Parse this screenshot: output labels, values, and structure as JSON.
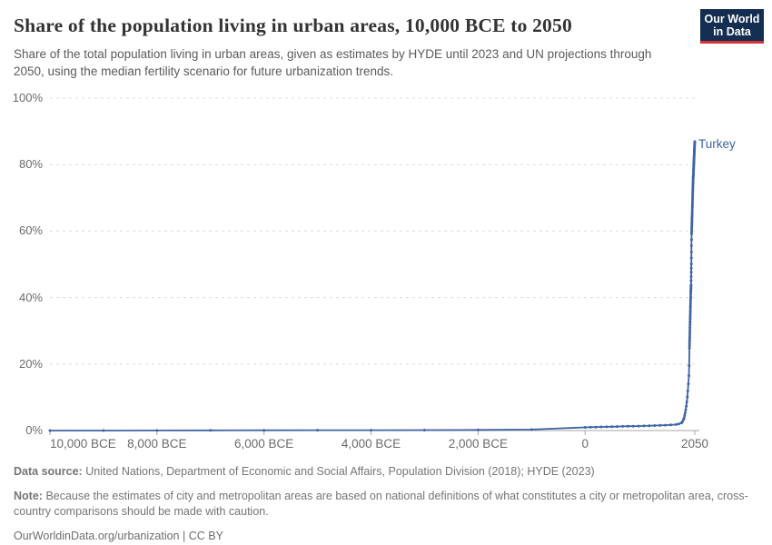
{
  "header": {
    "title": "Share of the population living in urban areas, 10,000 BCE to 2050",
    "subtitle": "Share of the total population living in urban areas, given as estimates by HYDE until 2023 and UN projections through 2050, using the median fertility scenario for future urbanization trends.",
    "logo": {
      "line1": "Our World",
      "line2": "in Data",
      "bg_color": "#142e52",
      "stripe_color": "#d1353a"
    }
  },
  "footer": {
    "datasource_label": "Data source:",
    "datasource_text": "United Nations, Department of Economic and Social Affairs, Population Division (2018); HYDE (2023)",
    "note_label": "Note:",
    "note_text": "Because the estimates of city and metropolitan areas are based on national definitions of what constitutes a city or metropolitan area, cross-country comparisons should be made with caution.",
    "citation_link": "OurWorldinData.org/urbanization",
    "citation_license": " | CC BY"
  },
  "chart_data": {
    "type": "line",
    "title": "Share of the population living in urban areas, 10,000 BCE to 2050",
    "xlabel": "",
    "ylabel": "",
    "xlim": [
      -10000,
      2050
    ],
    "ylim": [
      0,
      100
    ],
    "grid": "dashed-horizontal",
    "legend_position": "end-of-line-label",
    "x_ticks": [
      {
        "label": "10,000 BCE",
        "year": -10000,
        "align": "left"
      },
      {
        "label": "8,000 BCE",
        "year": -8000
      },
      {
        "label": "6,000 BCE",
        "year": -6000
      },
      {
        "label": "4,000 BCE",
        "year": -4000
      },
      {
        "label": "2,000 BCE",
        "year": -2000
      },
      {
        "label": "0",
        "year": 0
      },
      {
        "label": "2050",
        "year": 2050
      }
    ],
    "y_ticks": [
      {
        "label": "0%",
        "value": 0
      },
      {
        "label": "20%",
        "value": 20
      },
      {
        "label": "40%",
        "value": 40
      },
      {
        "label": "60%",
        "value": 60
      },
      {
        "label": "80%",
        "value": 80
      },
      {
        "label": "100%",
        "value": 100
      }
    ],
    "series": [
      {
        "name": "Turkey",
        "color": "#3d64a4",
        "points": [
          [
            -10000,
            0
          ],
          [
            -9000,
            0
          ],
          [
            -8000,
            0.02
          ],
          [
            -7000,
            0.05
          ],
          [
            -6000,
            0.08
          ],
          [
            -5000,
            0.1
          ],
          [
            -4000,
            0.12
          ],
          [
            -3000,
            0.15
          ],
          [
            -2000,
            0.2
          ],
          [
            -1000,
            0.3
          ],
          [
            0,
            0.95
          ],
          [
            100,
            1.0
          ],
          [
            200,
            1.05
          ],
          [
            300,
            1.1
          ],
          [
            400,
            1.12
          ],
          [
            500,
            1.15
          ],
          [
            600,
            1.2
          ],
          [
            700,
            1.25
          ],
          [
            800,
            1.3
          ],
          [
            900,
            1.32
          ],
          [
            1000,
            1.35
          ],
          [
            1100,
            1.4
          ],
          [
            1200,
            1.45
          ],
          [
            1300,
            1.5
          ],
          [
            1400,
            1.55
          ],
          [
            1500,
            1.6
          ],
          [
            1600,
            1.7
          ],
          [
            1700,
            1.8
          ],
          [
            1750,
            2.0
          ],
          [
            1800,
            2.3
          ],
          [
            1820,
            2.7
          ],
          [
            1840,
            3.3
          ],
          [
            1850,
            3.8
          ],
          [
            1860,
            4.5
          ],
          [
            1870,
            5.3
          ],
          [
            1880,
            6.2
          ],
          [
            1890,
            7.3
          ],
          [
            1900,
            8.6
          ],
          [
            1910,
            10.1
          ],
          [
            1920,
            11.9
          ],
          [
            1930,
            14.0
          ],
          [
            1940,
            16.5
          ],
          [
            1945,
            19.5
          ],
          [
            1950,
            24.8
          ],
          [
            1951,
            25.5
          ],
          [
            1952,
            26.1
          ],
          [
            1953,
            26.8
          ],
          [
            1954,
            27.4
          ],
          [
            1955,
            28.1
          ],
          [
            1956,
            28.8
          ],
          [
            1957,
            29.5
          ],
          [
            1958,
            30.2
          ],
          [
            1959,
            30.9
          ],
          [
            1960,
            31.6
          ],
          [
            1961,
            32.3
          ],
          [
            1962,
            32.9
          ],
          [
            1963,
            33.6
          ],
          [
            1964,
            34.2
          ],
          [
            1965,
            34.9
          ],
          [
            1966,
            35.6
          ],
          [
            1967,
            36.2
          ],
          [
            1968,
            36.9
          ],
          [
            1969,
            37.5
          ],
          [
            1970,
            38.2
          ],
          [
            1971,
            38.9
          ],
          [
            1972,
            39.6
          ],
          [
            1973,
            40.2
          ],
          [
            1974,
            40.9
          ],
          [
            1975,
            41.6
          ],
          [
            1976,
            42.0
          ],
          [
            1977,
            42.5
          ],
          [
            1978,
            42.9
          ],
          [
            1979,
            43.4
          ],
          [
            1980,
            43.8
          ],
          [
            1981,
            45.1
          ],
          [
            1982,
            46.3
          ],
          [
            1983,
            47.6
          ],
          [
            1984,
            48.8
          ],
          [
            1985,
            50.1
          ],
          [
            1986,
            51.9
          ],
          [
            1987,
            53.7
          ],
          [
            1988,
            55.6
          ],
          [
            1989,
            57.4
          ],
          [
            1990,
            59.2
          ],
          [
            1991,
            59.8
          ],
          [
            1992,
            60.4
          ],
          [
            1993,
            61.0
          ],
          [
            1994,
            61.5
          ],
          [
            1995,
            62.1
          ],
          [
            1996,
            62.6
          ],
          [
            1997,
            63.1
          ],
          [
            1998,
            63.7
          ],
          [
            1999,
            64.2
          ],
          [
            2000,
            64.7
          ],
          [
            2001,
            65.3
          ],
          [
            2002,
            65.9
          ],
          [
            2003,
            66.6
          ],
          [
            2004,
            67.2
          ],
          [
            2005,
            67.8
          ],
          [
            2006,
            68.4
          ],
          [
            2007,
            69.0
          ],
          [
            2008,
            69.6
          ],
          [
            2009,
            70.2
          ],
          [
            2010,
            70.8
          ],
          [
            2011,
            71.4
          ],
          [
            2012,
            71.9
          ],
          [
            2013,
            72.5
          ],
          [
            2014,
            73.0
          ],
          [
            2015,
            73.6
          ],
          [
            2016,
            74.1
          ],
          [
            2017,
            74.6
          ],
          [
            2018,
            75.1
          ],
          [
            2019,
            75.6
          ],
          [
            2020,
            76.1
          ],
          [
            2021,
            76.4
          ],
          [
            2022,
            76.7
          ],
          [
            2023,
            77.0
          ],
          [
            2024,
            77.4
          ],
          [
            2025,
            77.8
          ],
          [
            2026,
            78.2
          ],
          [
            2027,
            78.5
          ],
          [
            2028,
            78.9
          ],
          [
            2029,
            79.3
          ],
          [
            2030,
            79.7
          ],
          [
            2031,
            80.1
          ],
          [
            2032,
            80.4
          ],
          [
            2033,
            80.8
          ],
          [
            2034,
            81.2
          ],
          [
            2035,
            81.6
          ],
          [
            2036,
            81.9
          ],
          [
            2037,
            82.3
          ],
          [
            2038,
            82.7
          ],
          [
            2039,
            83.1
          ],
          [
            2040,
            83.4
          ],
          [
            2041,
            83.8
          ],
          [
            2042,
            84.2
          ],
          [
            2043,
            84.6
          ],
          [
            2044,
            84.9
          ],
          [
            2045,
            85.3
          ],
          [
            2046,
            85.7
          ],
          [
            2047,
            86.1
          ],
          [
            2048,
            86.4
          ],
          [
            2049,
            86.7
          ],
          [
            2050,
            86.9
          ]
        ]
      }
    ]
  }
}
